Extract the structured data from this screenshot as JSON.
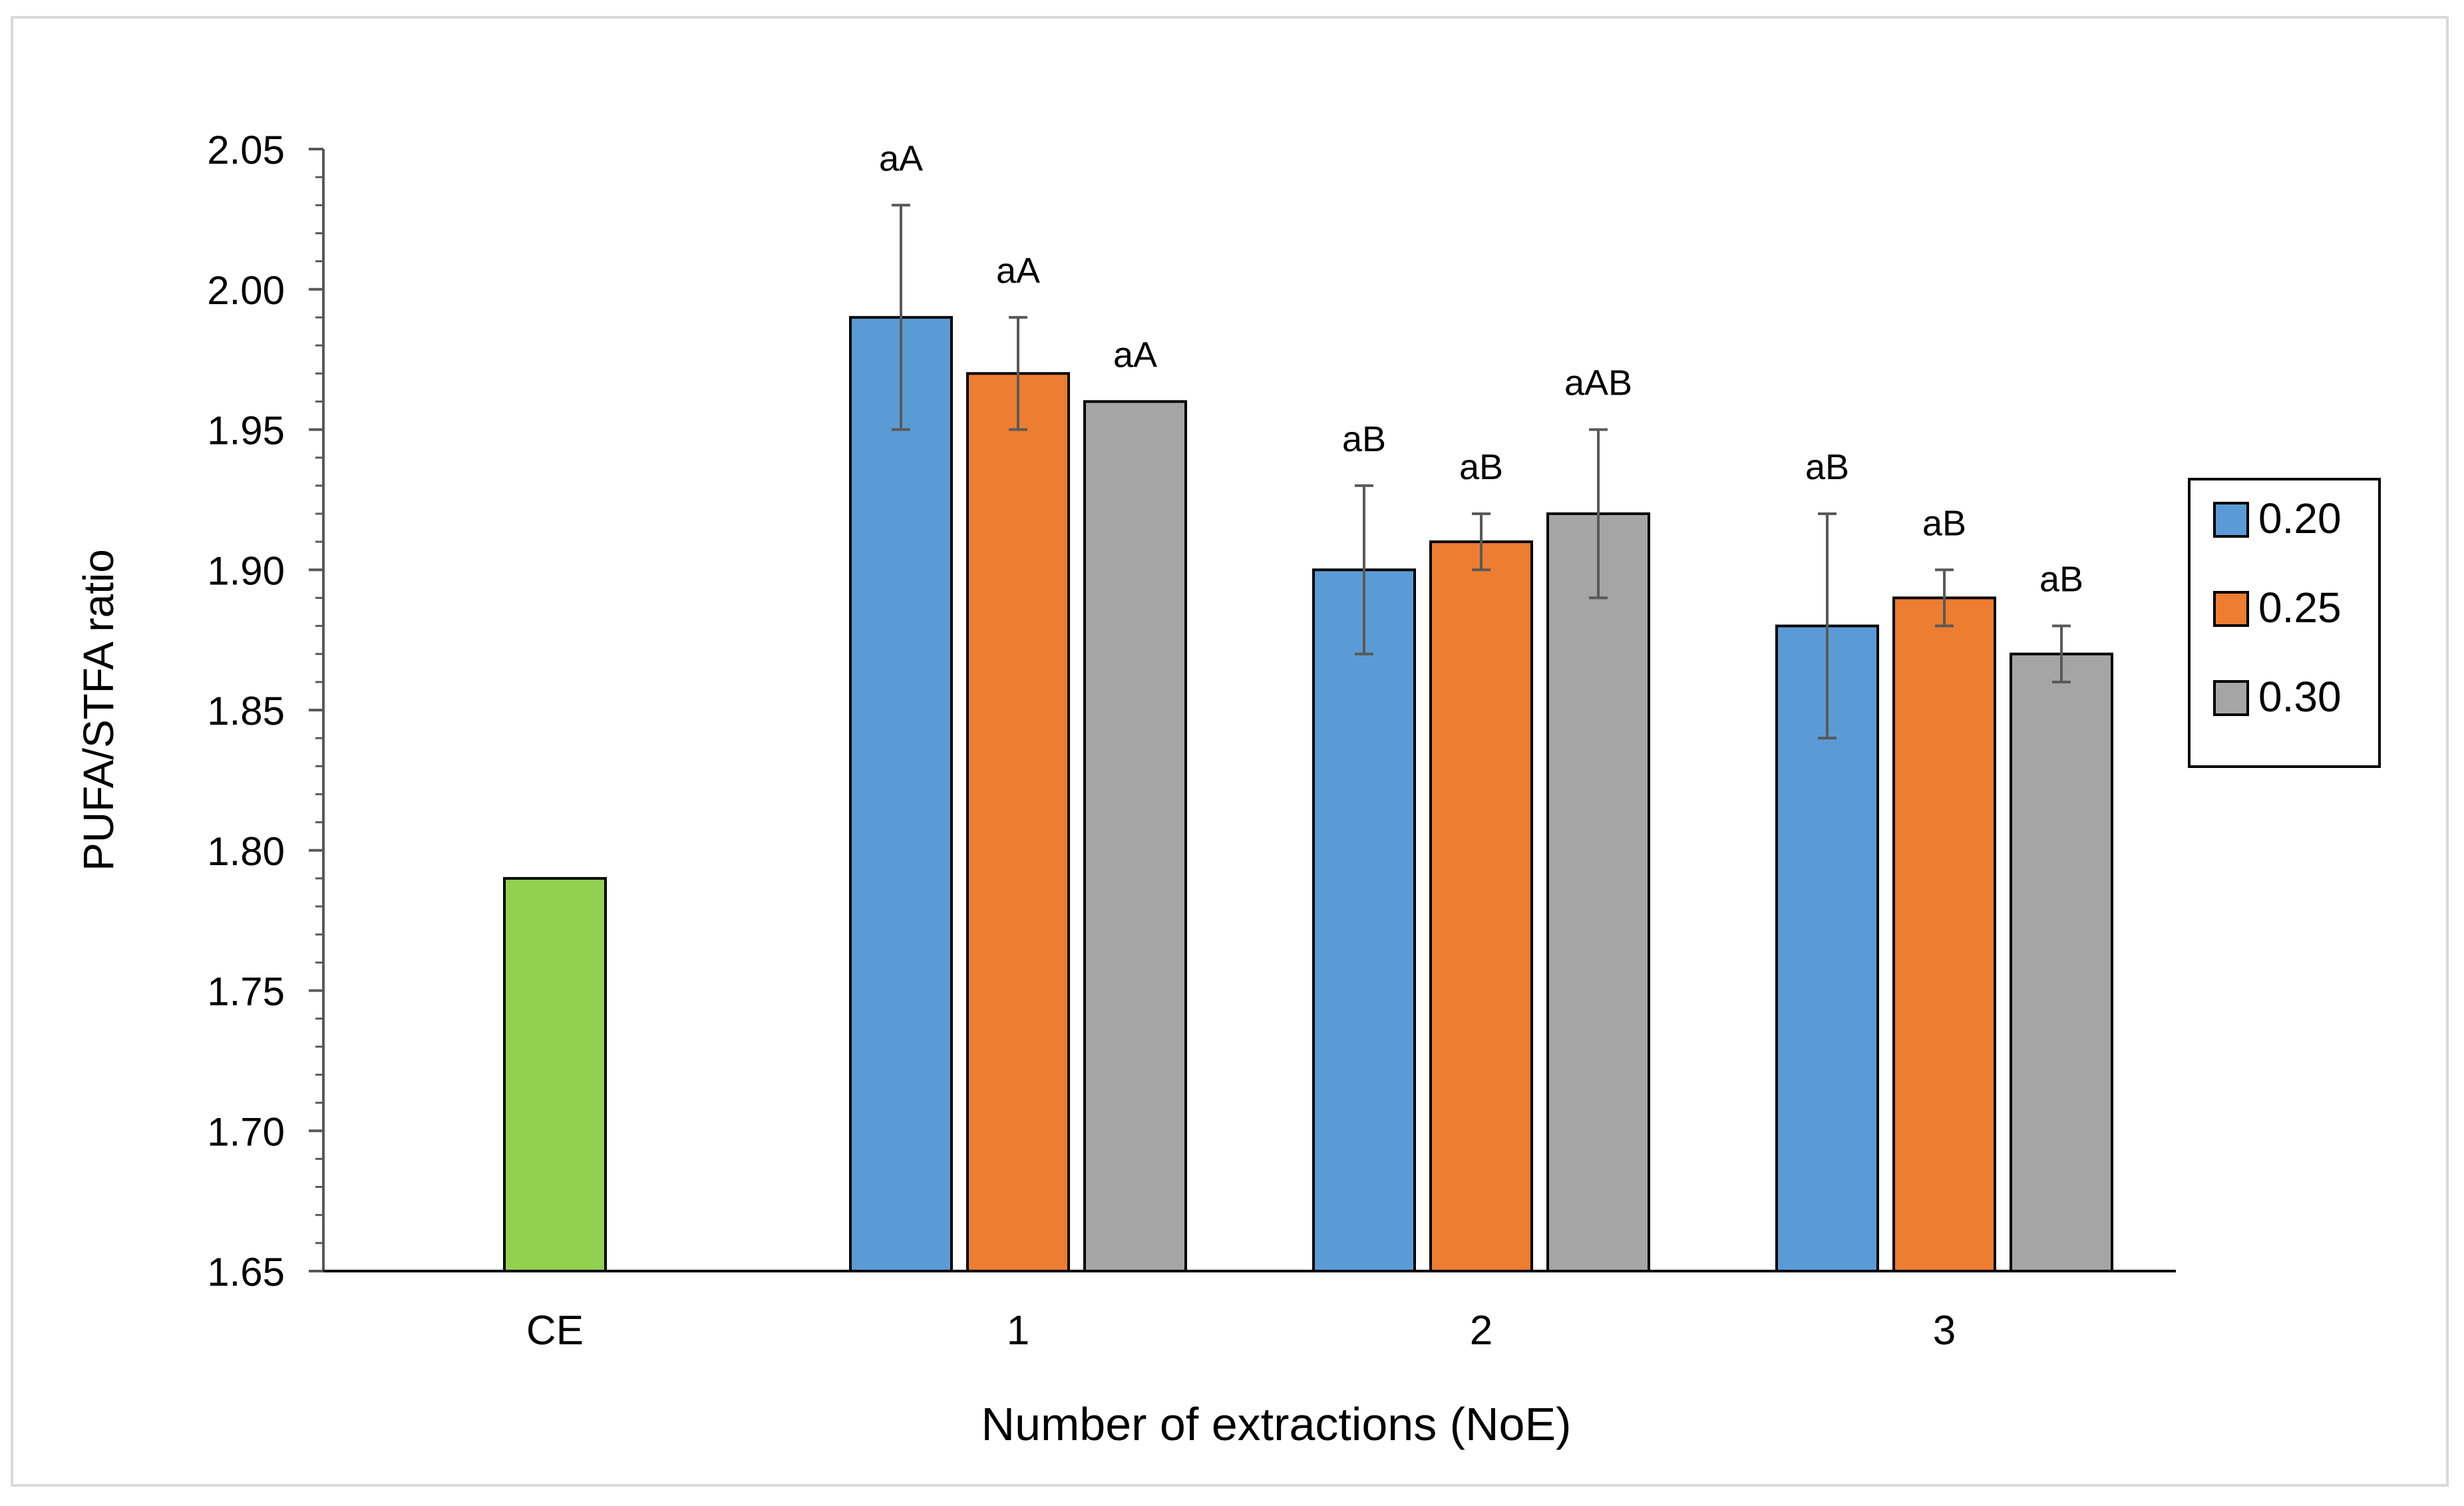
{
  "chart_data": {
    "type": "bar",
    "title": "",
    "xlabel": "Number of extractions (NoE)",
    "ylabel": "PUFA/STFA ratio",
    "ylim": [
      1.65,
      2.05
    ],
    "ytick_step": 0.05,
    "yticks": [
      "1.65",
      "1.70",
      "1.75",
      "1.80",
      "1.85",
      "1.90",
      "1.95",
      "2.00",
      "2.05"
    ],
    "categories": [
      "CE",
      "1",
      "2",
      "3"
    ],
    "control": {
      "category": "CE",
      "value": 1.79,
      "color": "#92d050"
    },
    "legend_position": "right",
    "series": [
      {
        "name": "0.20",
        "color": "#5b9bd5",
        "values": [
          null,
          1.99,
          1.9,
          1.88
        ],
        "errors": [
          null,
          0.04,
          0.03,
          0.04
        ],
        "labels": [
          null,
          "aA",
          "aB",
          "aB"
        ]
      },
      {
        "name": "0.25",
        "color": "#ed7d31",
        "values": [
          null,
          1.97,
          1.91,
          1.89
        ],
        "errors": [
          null,
          0.02,
          0.01,
          0.01
        ],
        "labels": [
          null,
          "aA",
          "aB",
          "aB"
        ]
      },
      {
        "name": "0.30",
        "color": "#a5a5a5",
        "values": [
          null,
          1.96,
          1.92,
          1.87
        ],
        "errors": [
          null,
          0,
          0.03,
          0.01
        ],
        "labels": [
          null,
          "aA",
          "aAB",
          "aB"
        ]
      }
    ]
  }
}
